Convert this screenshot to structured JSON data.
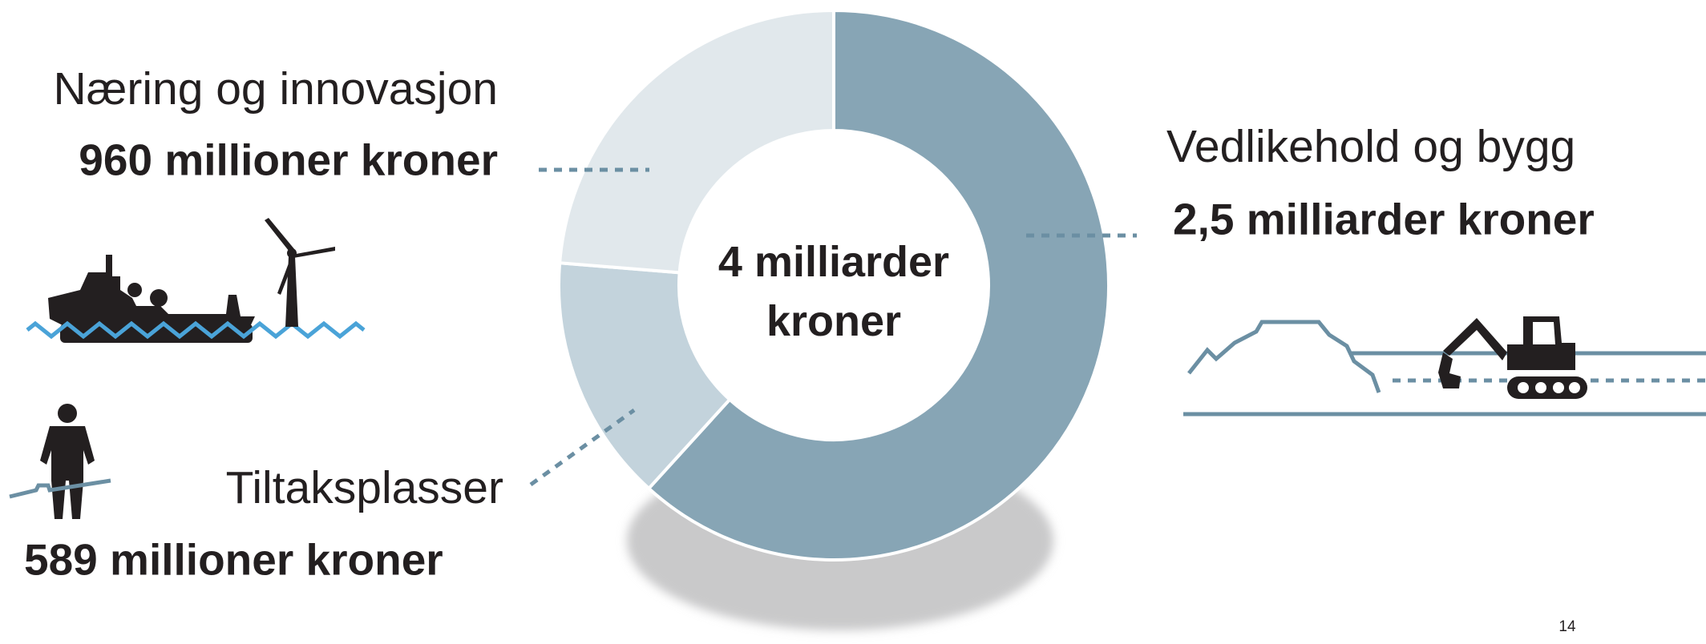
{
  "chart_data": {
    "type": "donut",
    "center_label": "4 milliarder kroner",
    "categories": [
      "Vedlikehold og bygg",
      "Tiltaksplasser",
      "Næring og innovasjon"
    ],
    "values": [
      2500,
      589,
      960
    ],
    "value_labels": [
      "2,5 milliarder kroner",
      "589 millioner kroner",
      "960 millioner kroner"
    ],
    "colors": [
      "#87a5b5",
      "#c3d3dc",
      "#e1e8ec"
    ]
  },
  "page_number": "14"
}
